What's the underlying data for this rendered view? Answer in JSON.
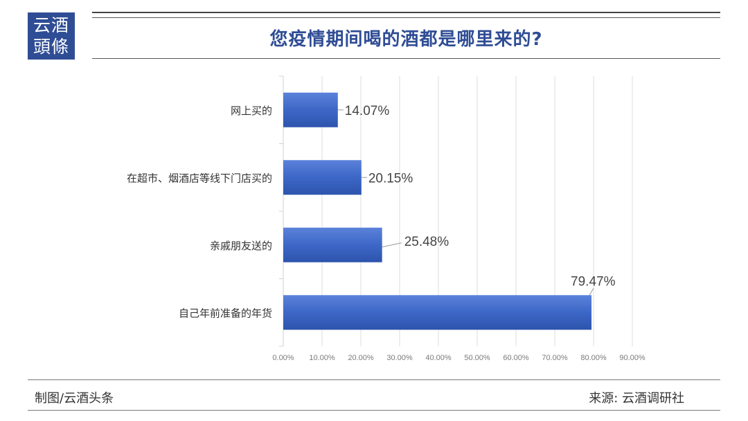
{
  "logo": {
    "line1": "云酒",
    "line2": "頭條"
  },
  "title": "您疫情期间喝的酒都是哪里来的?",
  "footer": {
    "left": "制图/云酒头条",
    "right": "来源: 云酒调研社"
  },
  "colors": {
    "bar": "#3d67c7",
    "title": "#2f4d95",
    "logo_bg": "#2f4d95"
  },
  "chart_data": {
    "type": "bar",
    "orientation": "horizontal",
    "title": "您疫情期间喝的酒都是哪里来的?",
    "categories": [
      "网上买的",
      "在超市、烟酒店等线下门店买的",
      "亲戚朋友送的",
      "自己年前准备的年货"
    ],
    "values": [
      14.07,
      20.15,
      25.48,
      79.47
    ],
    "value_labels": [
      "14.07%",
      "20.15%",
      "25.48%",
      "79.47%"
    ],
    "xlim": [
      0,
      90
    ],
    "x_ticks": [
      "0.00%",
      "10.00%",
      "20.00%",
      "30.00%",
      "40.00%",
      "50.00%",
      "60.00%",
      "70.00%",
      "80.00%",
      "90.00%"
    ],
    "xlabel": "",
    "ylabel": "",
    "grid": "vertical",
    "legend": "none"
  }
}
